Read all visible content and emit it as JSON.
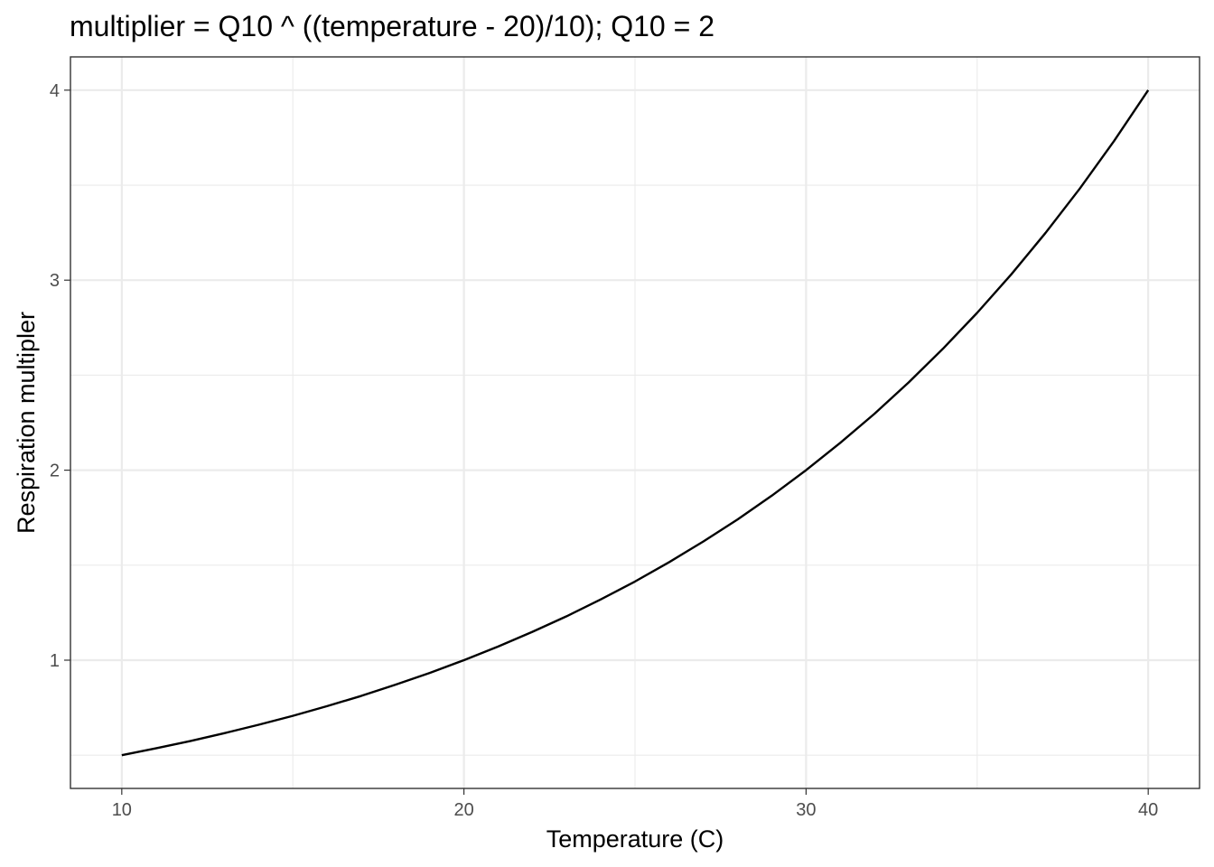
{
  "chart_data": {
    "type": "line",
    "title": "multiplier = Q10 ^ ((temperature - 20)/10); Q10 = 2",
    "xlabel": "Temperature (C)",
    "ylabel": "Respiration multipler",
    "xlim": [
      8.5,
      41.5
    ],
    "ylim": [
      0.325,
      4.175
    ],
    "x_ticks": [
      10,
      20,
      30,
      40
    ],
    "x_tick_labels": [
      "10",
      "20",
      "30",
      "40"
    ],
    "y_ticks": [
      1,
      2,
      3,
      4
    ],
    "y_tick_labels": [
      "1",
      "2",
      "3",
      "4"
    ],
    "x_minor_ticks": [
      15,
      25,
      35
    ],
    "y_minor_ticks": [
      0.5,
      1.5,
      2.5,
      3.5
    ],
    "grid": true,
    "colors": {
      "line": "#000000",
      "grid": "#ebebeb",
      "border": "#333333",
      "tick_text": "#4d4d4d"
    },
    "series": [
      {
        "x": [
          10,
          11,
          12,
          13,
          14,
          15,
          16,
          17,
          18,
          19,
          20,
          21,
          22,
          23,
          24,
          25,
          26,
          27,
          28,
          29,
          30,
          31,
          32,
          33,
          34,
          35,
          36,
          37,
          38,
          39,
          40
        ],
        "y": [
          0.5,
          0.536,
          0.574,
          0.616,
          0.66,
          0.707,
          0.758,
          0.812,
          0.871,
          0.933,
          1.0,
          1.072,
          1.149,
          1.231,
          1.32,
          1.414,
          1.516,
          1.625,
          1.741,
          1.866,
          2.0,
          2.144,
          2.297,
          2.462,
          2.639,
          2.828,
          3.031,
          3.249,
          3.482,
          3.732,
          4.0
        ]
      }
    ]
  }
}
